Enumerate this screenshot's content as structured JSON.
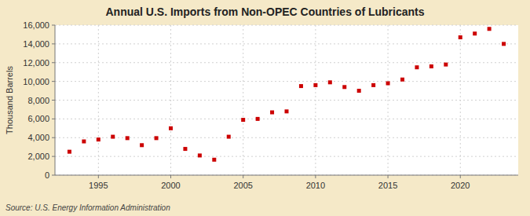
{
  "chart_data": {
    "type": "scatter",
    "title": "Annual U.S. Imports from Non-OPEC Countries of Lubricants",
    "y_label": "Thousand Barrels",
    "source": "Source: U.S. Energy Information Administration",
    "color": "#cc0000",
    "marker": "square",
    "x": [
      1993,
      1994,
      1995,
      1996,
      1997,
      1998,
      1999,
      2000,
      2001,
      2002,
      2003,
      2004,
      2005,
      2006,
      2007,
      2008,
      2009,
      2010,
      2011,
      2012,
      2013,
      2014,
      2015,
      2016,
      2017,
      2018,
      2019,
      2020,
      2021,
      2022,
      2023
    ],
    "values": [
      2500,
      3600,
      3800,
      4100,
      3950,
      3200,
      3950,
      5000,
      2800,
      2100,
      1650,
      4100,
      5900,
      6000,
      6700,
      6800,
      9500,
      9600,
      9900,
      9400,
      9000,
      9600,
      9800,
      10200,
      11500,
      11600,
      11800,
      14700,
      15100,
      15600,
      14000
    ],
    "xlim": [
      1992,
      2024
    ],
    "xticks": [
      1995,
      2000,
      2005,
      2010,
      2015,
      2020
    ],
    "ylim": [
      0,
      16000
    ],
    "yticks": [
      0,
      {
        "value": 2000,
        "label": "2,000"
      },
      {
        "value": 4000,
        "label": "4,000"
      },
      {
        "value": 6000,
        "label": "6,000"
      },
      {
        "value": 8000,
        "label": "8,000"
      },
      {
        "value": 10000,
        "label": "10,000"
      },
      {
        "value": 12000,
        "label": "12,000"
      },
      {
        "value": 14000,
        "label": "14,000"
      },
      {
        "value": 16000,
        "label": "16,000"
      }
    ],
    "grid": true
  }
}
